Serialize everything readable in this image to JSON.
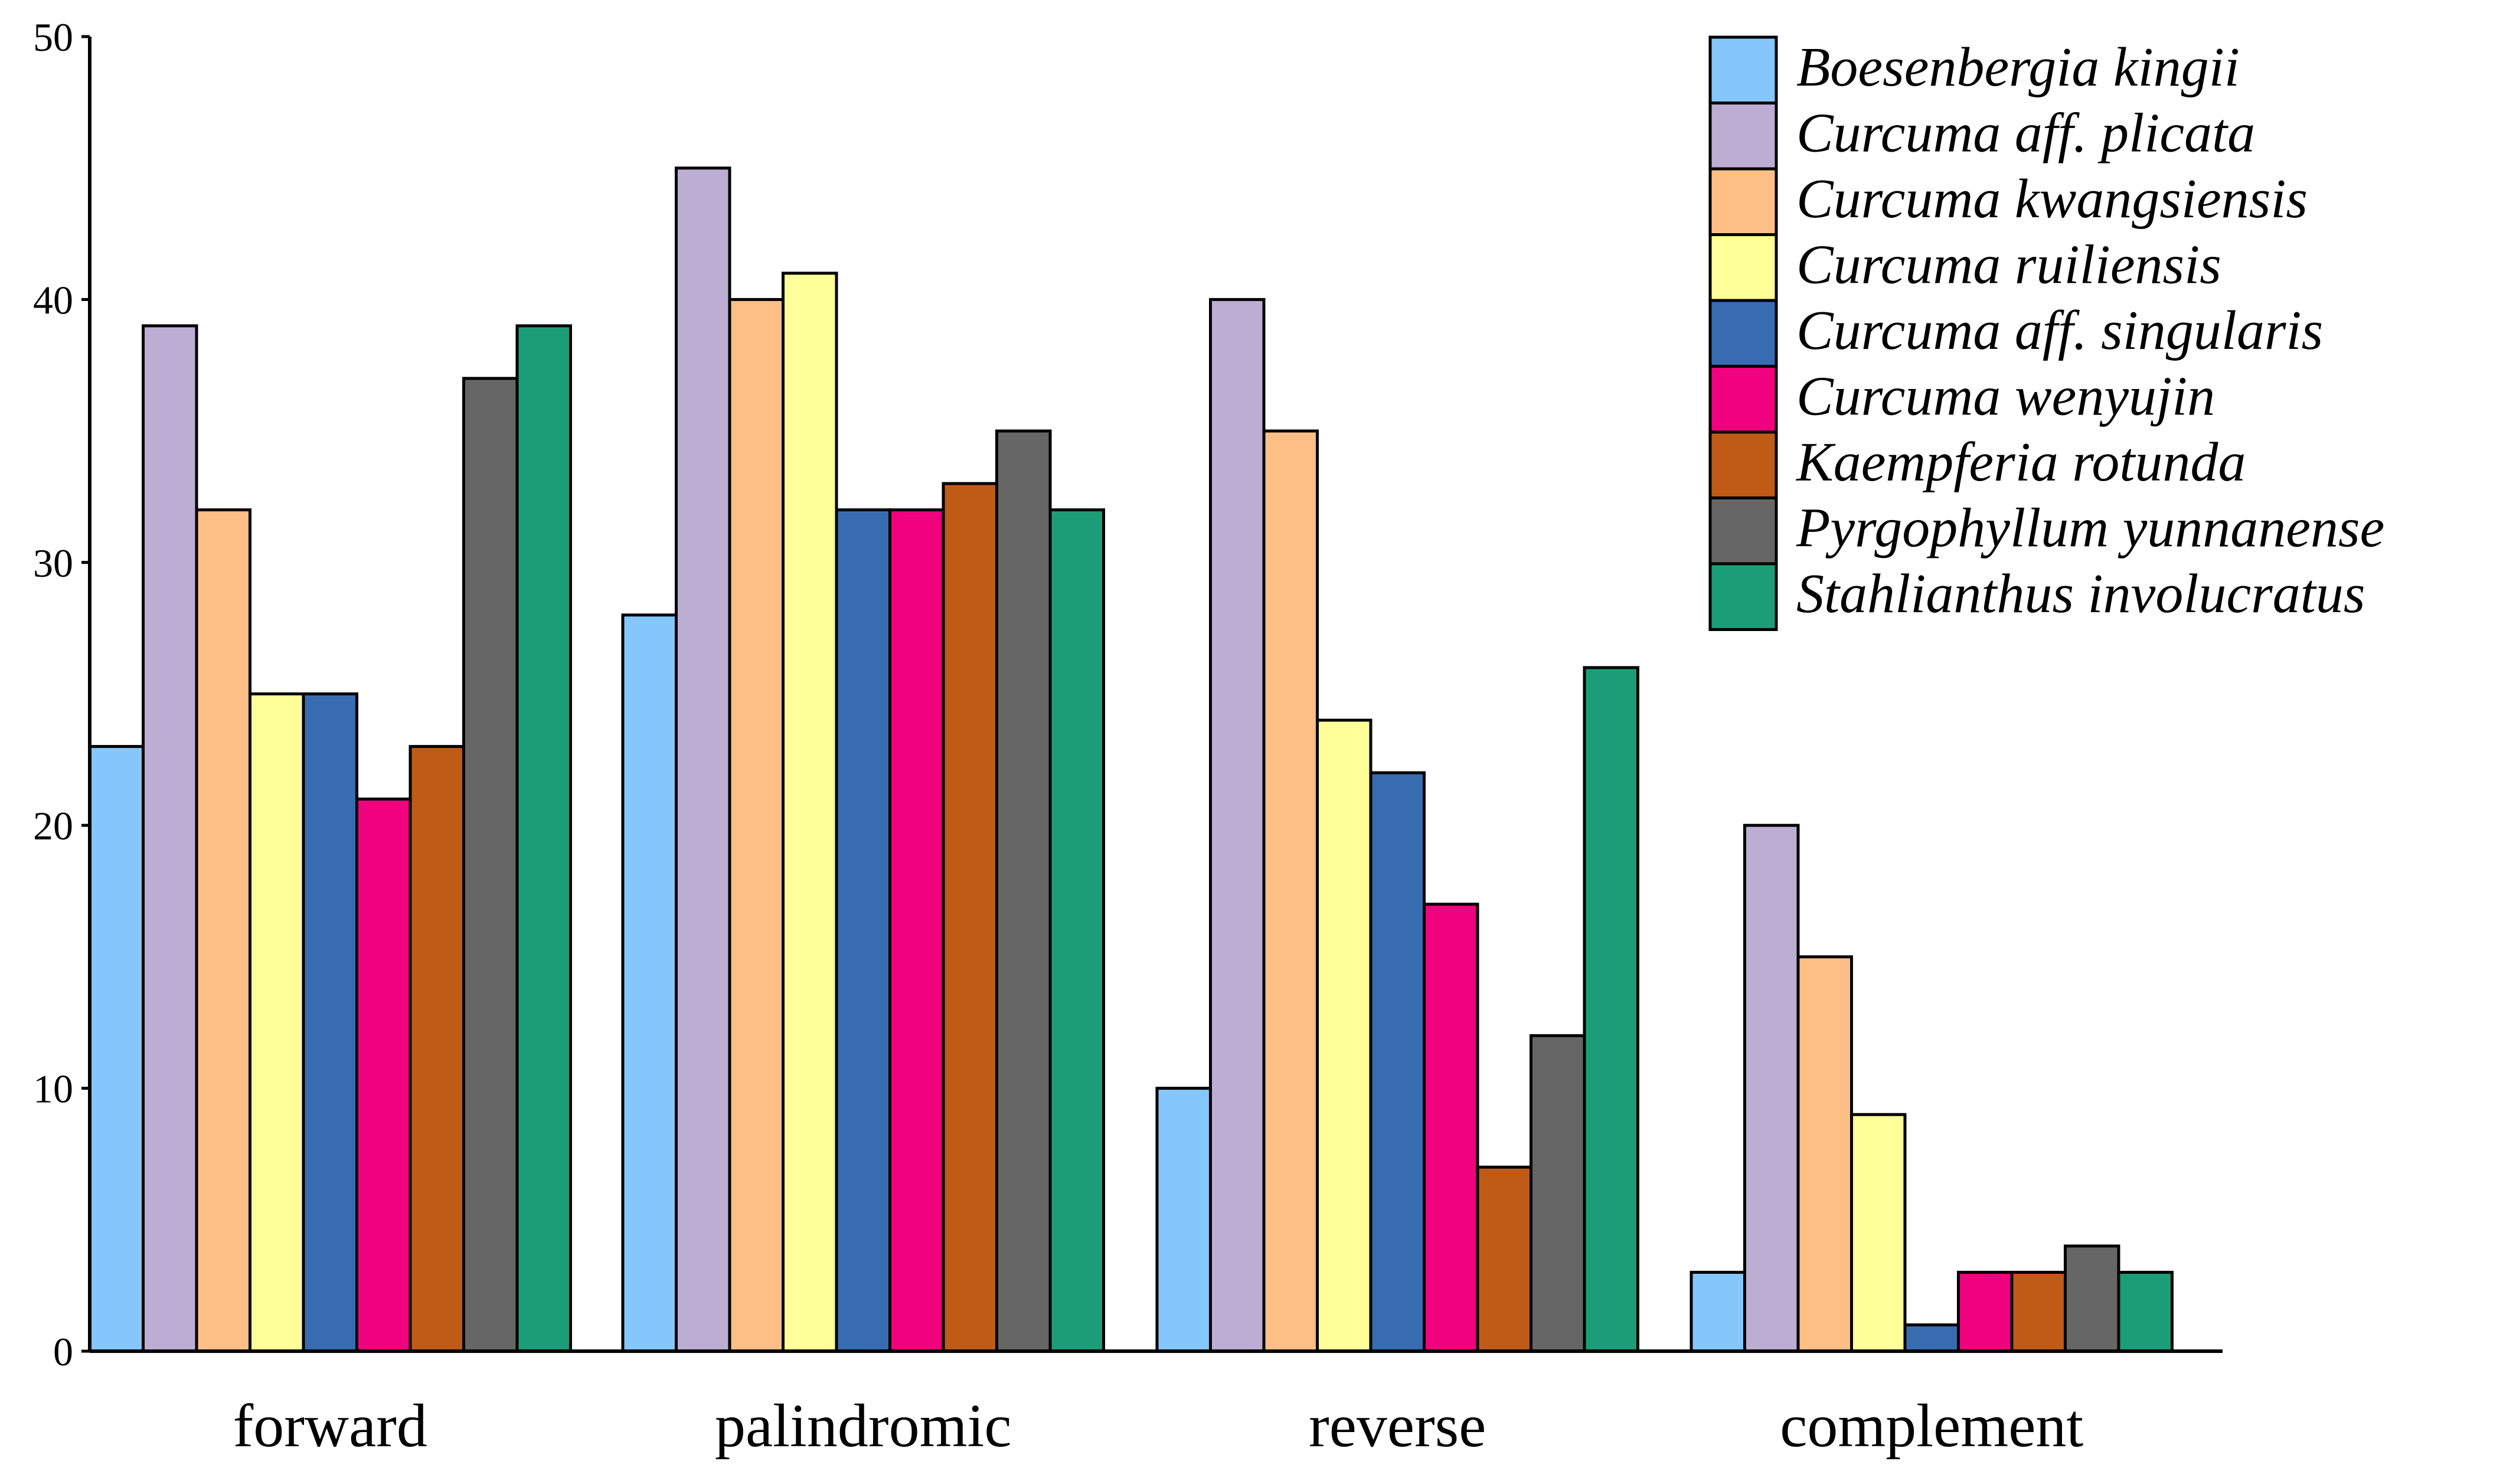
{
  "chart_data": {
    "type": "bar",
    "title": "",
    "xlabel": "",
    "ylabel": "",
    "ylim": [
      0,
      50
    ],
    "yticks": [
      0,
      10,
      20,
      30,
      40,
      50
    ],
    "grid": false,
    "legend_position": "top-right",
    "categories": [
      "forward",
      "palindromic",
      "reverse",
      "complement"
    ],
    "series": [
      {
        "name": "Boesenbergia kingii",
        "color": "#85C7FB",
        "values": [
          23,
          28,
          10,
          3
        ]
      },
      {
        "name": "Curcuma aff. plicata",
        "color": "#BCADD3",
        "values": [
          39,
          45,
          40,
          20
        ]
      },
      {
        "name": "Curcuma kwangsiensis",
        "color": "#FDBF85",
        "values": [
          32,
          40,
          35,
          15
        ]
      },
      {
        "name": "Curcuma ruiliensis",
        "color": "#FFFF99",
        "values": [
          25,
          41,
          24,
          9
        ]
      },
      {
        "name": "Curcuma aff. singularis",
        "color": "#386CB0",
        "values": [
          25,
          32,
          22,
          1
        ]
      },
      {
        "name": "Curcuma wenyujin",
        "color": "#F0027F",
        "values": [
          21,
          32,
          17,
          3
        ]
      },
      {
        "name": "Kaempferia rotunda",
        "color": "#BF5B17",
        "values": [
          23,
          33,
          7,
          3
        ]
      },
      {
        "name": "Pyrgophyllum yunnanense",
        "color": "#666666",
        "values": [
          37,
          35,
          12,
          4
        ]
      },
      {
        "name": "Stahlianthus involucratus",
        "color": "#1B9E77",
        "values": [
          39,
          32,
          26,
          3
        ]
      }
    ]
  }
}
